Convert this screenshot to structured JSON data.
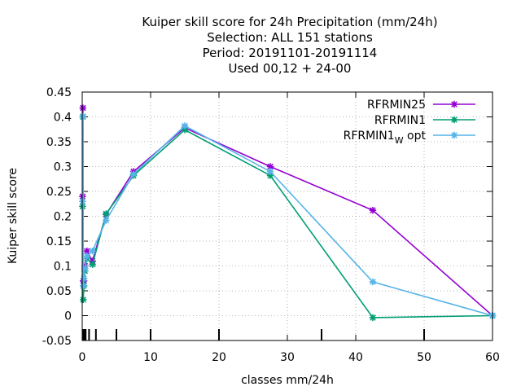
{
  "chart_data": {
    "type": "line",
    "title_lines": [
      "Kuiper skill score  for 24h Precipitation (mm/24h)",
      "Selection: ALL    151 stations",
      "Period: 20191101-20191114",
      "Used  00,12  + 24-00"
    ],
    "xlabel": "classes mm/24h",
    "ylabel": "Kuiper skill score",
    "xlim": [
      0,
      60
    ],
    "ylim": [
      -0.05,
      0.45
    ],
    "xticks": [
      0,
      10,
      20,
      30,
      40,
      50,
      60
    ],
    "yticks": [
      -0.05,
      0,
      0.05,
      0.1,
      0.15,
      0.2,
      0.25,
      0.3,
      0.35,
      0.4,
      0.45
    ],
    "ytick_labels": [
      "-0.05",
      "0",
      "0.05",
      "0.1",
      "0.15",
      "0.2",
      "0.25",
      "0.3",
      "0.35",
      "0.4",
      "0.45"
    ],
    "class_marks": [
      0.1,
      0.2,
      0.3,
      0.5,
      1,
      2,
      5,
      10,
      20,
      35,
      50
    ],
    "grid": true,
    "legend_position": "top-right",
    "series": [
      {
        "name": "RFRMIN25",
        "color": "#9400d3",
        "x": [
          0.05,
          0.1,
          0.15,
          0.25,
          0.4,
          0.7,
          1.5,
          3.5,
          7.5,
          15,
          27.5,
          42.5,
          60
        ],
        "y": [
          0.24,
          0.418,
          0.07,
          0.07,
          0.1,
          0.13,
          0.11,
          0.204,
          0.29,
          0.378,
          0.3,
          0.212,
          0.0
        ]
      },
      {
        "name": "RFRMIN1",
        "color": "#009e73",
        "x": [
          0.05,
          0.1,
          0.15,
          0.25,
          0.4,
          0.7,
          1.5,
          3.5,
          7.5,
          15,
          27.5,
          42.5,
          60
        ],
        "y": [
          0.22,
          0.4,
          0.032,
          0.06,
          0.09,
          0.115,
          0.103,
          0.205,
          0.282,
          0.374,
          0.282,
          -0.004,
          0.0
        ]
      },
      {
        "name_main": "RFRMIN1",
        "name_sub": "W",
        "name_suffix": " opt",
        "color": "#56b4e9",
        "x": [
          0.05,
          0.1,
          0.15,
          0.25,
          0.4,
          0.7,
          1.5,
          3.5,
          7.5,
          15,
          27.5,
          42.5,
          60
        ],
        "y": [
          0.23,
          0.401,
          0.06,
          0.075,
          0.095,
          0.12,
          0.13,
          0.192,
          0.285,
          0.382,
          0.29,
          0.068,
          0.0
        ]
      }
    ]
  }
}
